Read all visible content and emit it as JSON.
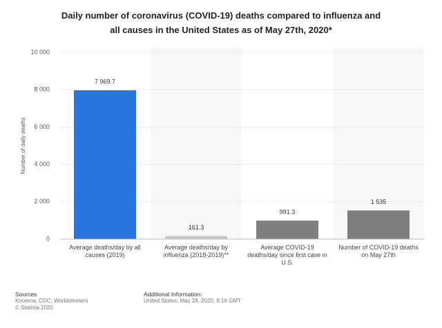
{
  "chart_data": {
    "type": "bar",
    "title": "Daily number of coronavirus (COVID-19) deaths compared to influenza and all causes in the United States as of May 27th, 2020*",
    "y_label": "Number of daily deaths",
    "categories": [
      "Average deaths/day by all causes (2019)",
      "Average deaths/day by influenza (2018-2019)**",
      "Average COVID-19 deaths/day since first case in U.S.",
      "Number of COVID-19 deaths on May 27th"
    ],
    "values": [
      7969.7,
      161.3,
      991.3,
      1535
    ],
    "value_labels": [
      "7 969.7",
      "161.3",
      "991.3",
      "1 535"
    ],
    "colors": [
      "#2876dd",
      "#c8c8c8",
      "#7f7f7f",
      "#7f7f7f"
    ],
    "ylim": [
      0,
      10000
    ],
    "yticks": [
      0,
      {
        "value": 2000,
        "label": "2 000"
      },
      {
        "value": 4000,
        "label": "4 000"
      },
      {
        "value": 6000,
        "label": "6 000"
      },
      {
        "value": 8000,
        "label": "8 000"
      },
      {
        "value": 10000,
        "label": "10 000"
      }
    ],
    "grid": true
  },
  "sources": {
    "heading": "Sources",
    "lines": [
      "Knoema; CDC; Worldometers",
      "© Statista 2020"
    ]
  },
  "additional_info": {
    "heading": "Additional Information:",
    "lines": [
      "United States; May 28, 2020, 8:16 GMT"
    ]
  }
}
